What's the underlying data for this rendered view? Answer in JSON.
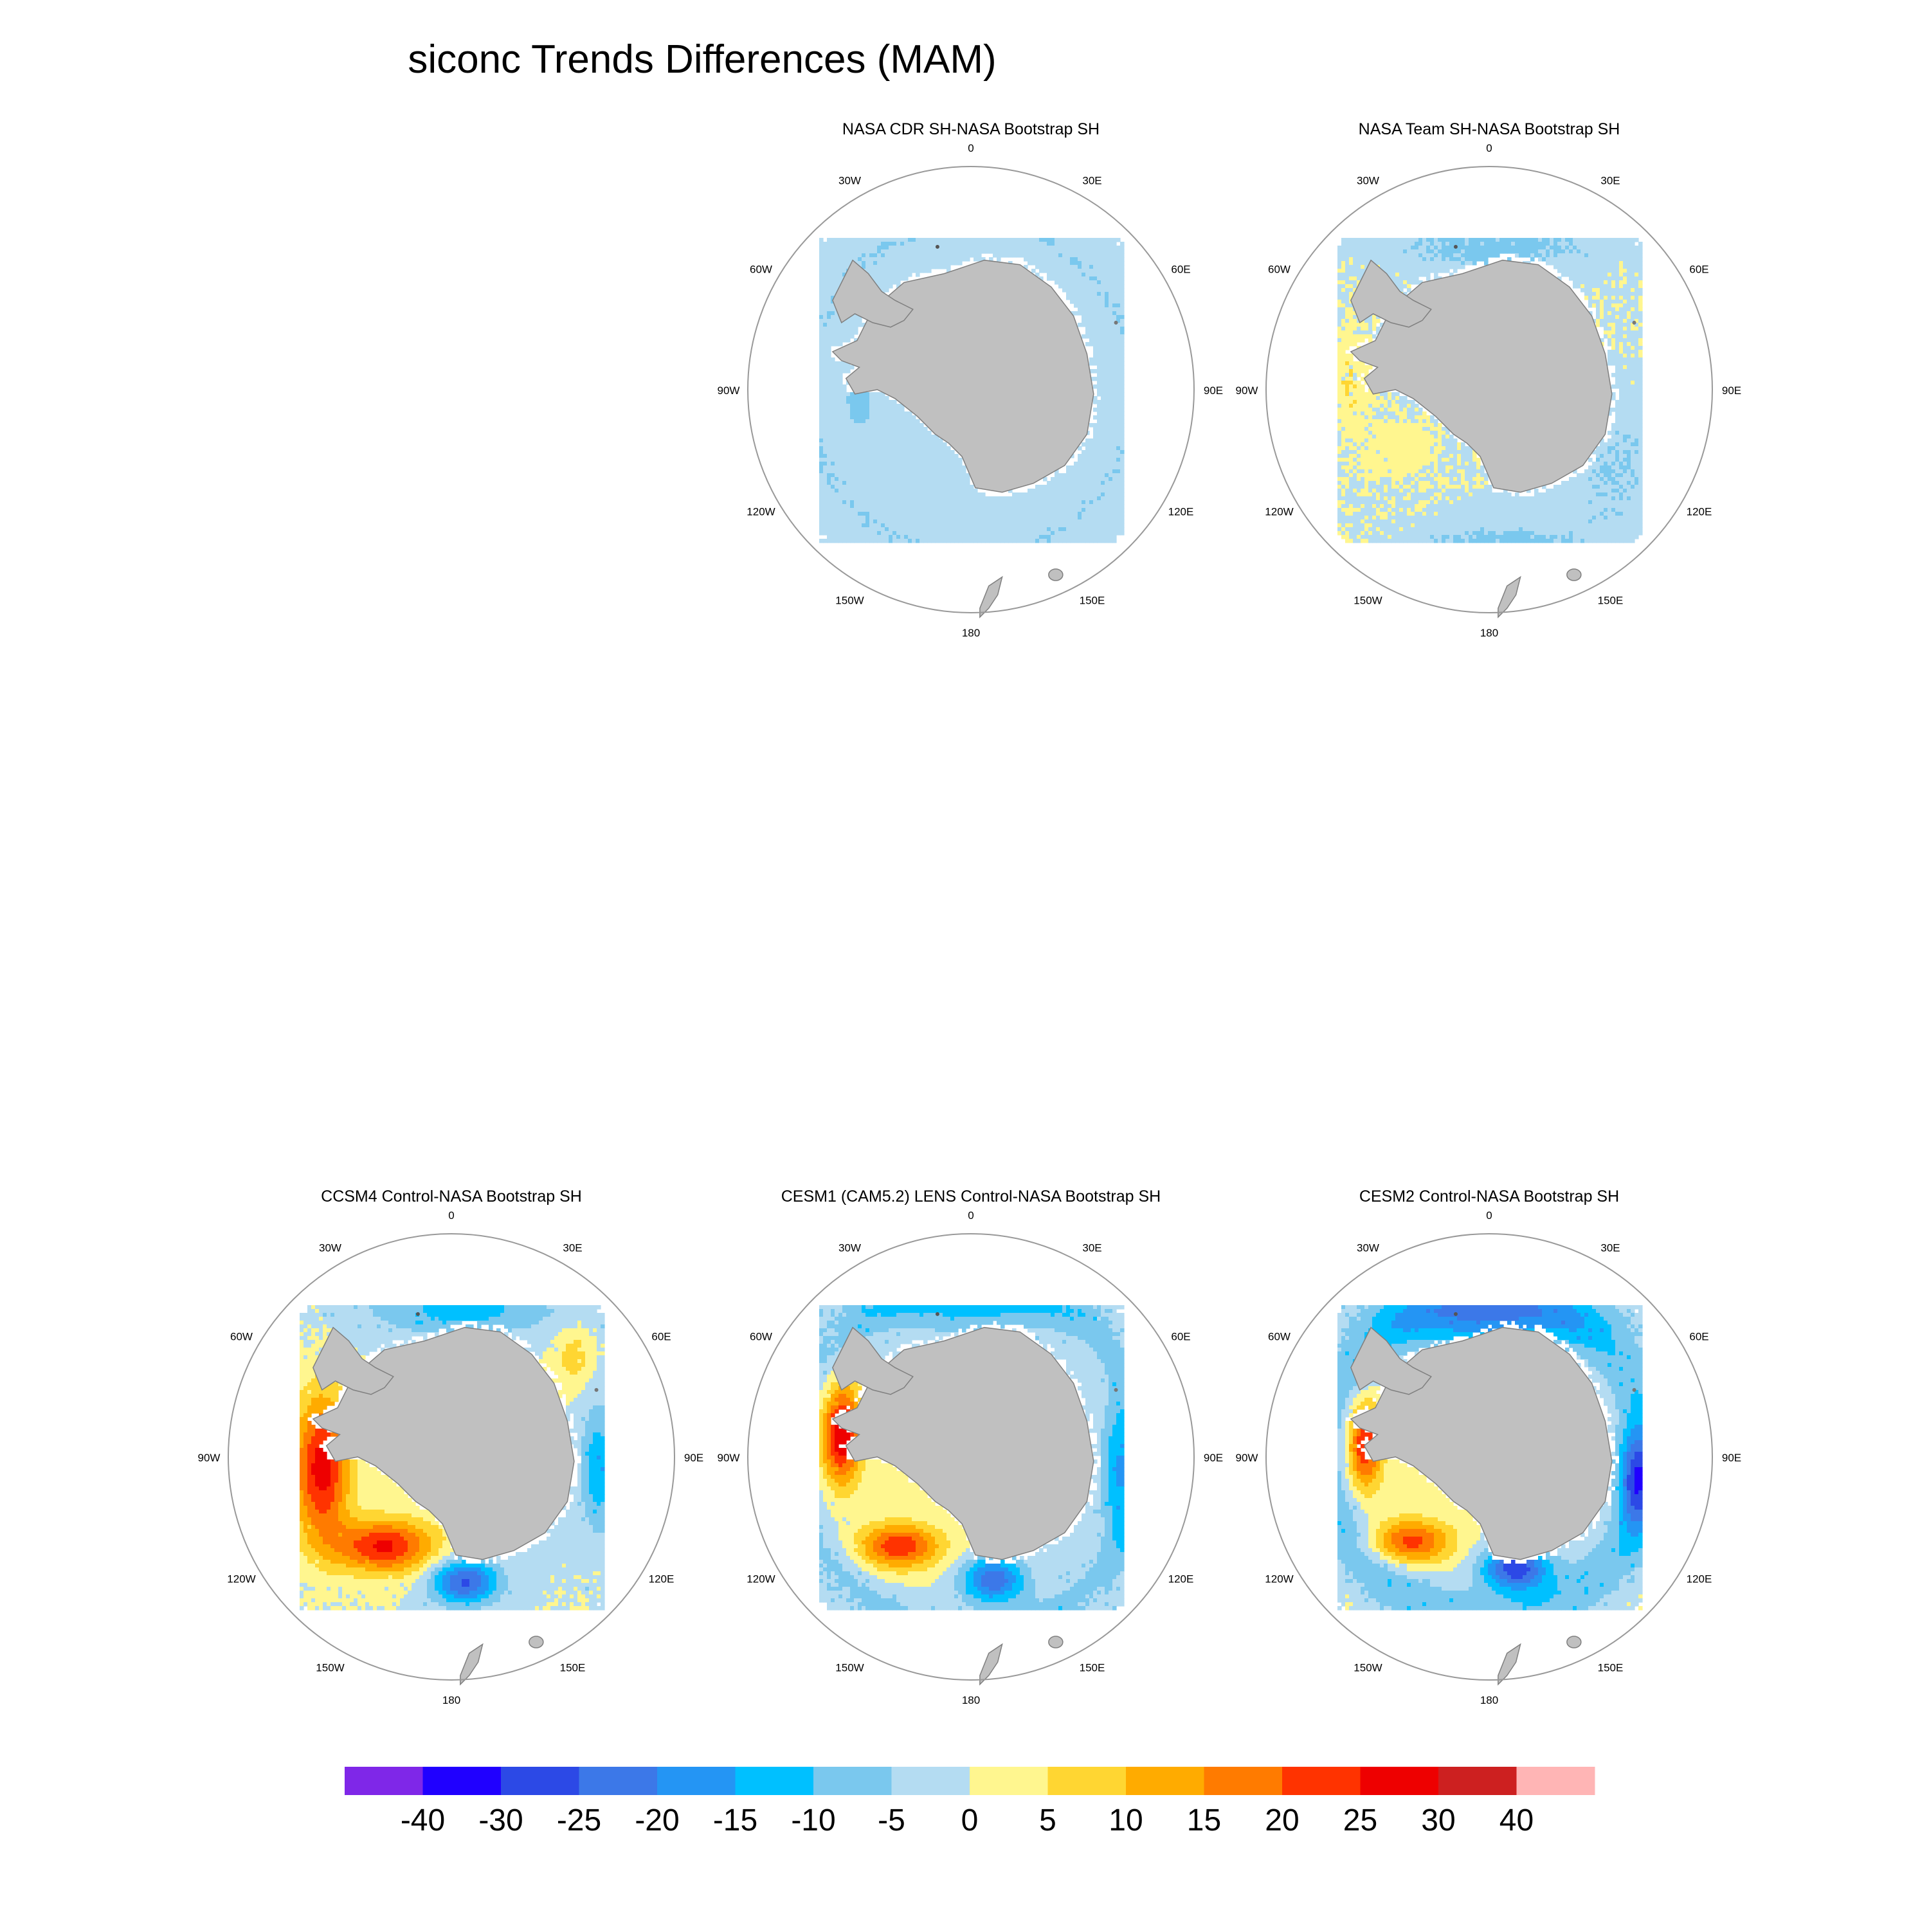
{
  "figure": {
    "title": "siconc Trends Differences (MAM)"
  },
  "panels": [
    {
      "id": "cdr",
      "title": "NASA CDR SH-NASA Bootstrap SH",
      "pattern": "obs1"
    },
    {
      "id": "team",
      "title": "NASA Team SH-NASA Bootstrap SH",
      "pattern": "obs2"
    },
    {
      "id": "ccsm4",
      "title": "CCSM4 Control-NASA Bootstrap SH",
      "pattern": "model1"
    },
    {
      "id": "cesm1",
      "title": "CESM1 (CAM5.2) LENS Control-NASA Bootstrap SH",
      "pattern": "model2"
    },
    {
      "id": "cesm2",
      "title": "CESM2 Control-NASA Bootstrap SH",
      "pattern": "model3"
    }
  ],
  "map_labels": {
    "lon_0": "0",
    "lon_30e": "30E",
    "lon_60e": "60E",
    "lon_90e": "90E",
    "lon_120e": "120E",
    "lon_150e": "150E",
    "lon_180": "180",
    "lon_150w": "150W",
    "lon_120w": "120W",
    "lon_90w": "90W",
    "lon_60w": "60W",
    "lon_30w": "30W"
  },
  "colors": {
    "land": "#c0c0c0",
    "land_outline": "#7f7f7f",
    "ocean_zero": "#fff68f",
    "circle": "#999999"
  },
  "colorbar": {
    "colors": [
      "#7f27e8",
      "#2000ff",
      "#2c49e6",
      "#3c78e8",
      "#2495f4",
      "#00c0ff",
      "#7ac8ee",
      "#b4dcf2",
      "#fff68f",
      "#ffd632",
      "#ffab00",
      "#ff7b00",
      "#ff3300",
      "#ee0000",
      "#cd2020",
      "#ffb5b5"
    ],
    "labels": [
      "-40",
      "-30",
      "-25",
      "-20",
      "-15",
      "-10",
      "-5",
      "0",
      "5",
      "10",
      "15",
      "20",
      "25",
      "30",
      "40"
    ]
  }
}
